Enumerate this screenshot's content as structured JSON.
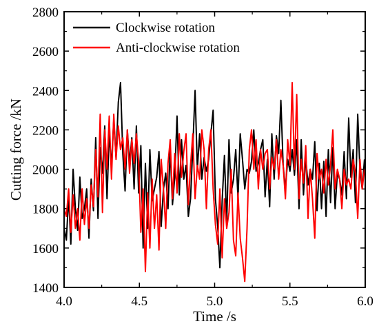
{
  "chart_data": {
    "type": "line",
    "title": "",
    "xlabel": "Time /s",
    "ylabel": "Cutting force /kN",
    "xlim": [
      4.0,
      6.0
    ],
    "ylim": [
      1400,
      2800
    ],
    "x_ticks": [
      "4.0",
      "4.5",
      "5.0",
      "5.5",
      "6.0"
    ],
    "y_ticks": [
      "1400",
      "1600",
      "1800",
      "2000",
      "2200",
      "2400",
      "2600",
      "2800"
    ],
    "grid": false,
    "legend_position": "top-left",
    "series": [
      {
        "name": "Clockwise rotation",
        "color": "#000000",
        "x": [
          4.0,
          4.015,
          4.03,
          4.045,
          4.06,
          4.075,
          4.09,
          4.105,
          4.12,
          4.135,
          4.15,
          4.165,
          4.18,
          4.195,
          4.21,
          4.225,
          4.24,
          4.255,
          4.27,
          4.285,
          4.3,
          4.315,
          4.33,
          4.345,
          4.36,
          4.375,
          4.39,
          4.405,
          4.42,
          4.435,
          4.45,
          4.465,
          4.48,
          4.495,
          4.51,
          4.525,
          4.54,
          4.555,
          4.57,
          4.585,
          4.6,
          4.615,
          4.63,
          4.645,
          4.66,
          4.675,
          4.69,
          4.705,
          4.72,
          4.735,
          4.75,
          4.765,
          4.78,
          4.795,
          4.81,
          4.825,
          4.84,
          4.855,
          4.87,
          4.885,
          4.9,
          4.915,
          4.93,
          4.945,
          4.96,
          4.975,
          4.99,
          5.005,
          5.02,
          5.035,
          5.05,
          5.065,
          5.08,
          5.095,
          5.11,
          5.125,
          5.14,
          5.155,
          5.17,
          5.185,
          5.2,
          5.215,
          5.23,
          5.245,
          5.26,
          5.275,
          5.29,
          5.305,
          5.32,
          5.335,
          5.35,
          5.365,
          5.38,
          5.395,
          5.41,
          5.425,
          5.44,
          5.455,
          5.47,
          5.485,
          5.5,
          5.515,
          5.53,
          5.545,
          5.56,
          5.575,
          5.59,
          5.605,
          5.62,
          5.635,
          5.65,
          5.665,
          5.68,
          5.695,
          5.71,
          5.725,
          5.74,
          5.755,
          5.77,
          5.785,
          5.8,
          5.815,
          5.83,
          5.845,
          5.86,
          5.875,
          5.89,
          5.905,
          5.92,
          5.935,
          5.95,
          5.965,
          5.98,
          5.995
        ],
        "y": [
          1700,
          1640,
          1860,
          1620,
          2000,
          1800,
          1690,
          1960,
          1750,
          1800,
          1900,
          1650,
          1950,
          1790,
          2160,
          1750,
          2110,
          1980,
          2220,
          1850,
          2180,
          2020,
          2250,
          2060,
          2340,
          2440,
          2080,
          1890,
          2200,
          2030,
          2160,
          1900,
          2220,
          1880,
          2120,
          1600,
          2030,
          1700,
          2100,
          1840,
          1900,
          1960,
          2090,
          1710,
          1900,
          1980,
          1800,
          2100,
          1820,
          1960,
          2270,
          1870,
          2150,
          1950,
          2020,
          1760,
          1850,
          2110,
          2400,
          2000,
          2180,
          1950,
          2060,
          1990,
          2050,
          2180,
          2300,
          1850,
          1710,
          1500,
          1840,
          2070,
          1730,
          2150,
          1880,
          1950,
          2100,
          1850,
          2180,
          2050,
          1900,
          2000,
          1980,
          2040,
          2200,
          1990,
          2030,
          2100,
          2150,
          1860,
          2050,
          1810,
          2180,
          1950,
          2170,
          2080,
          2350,
          2020,
          1900,
          2050,
          1990,
          2100,
          1970,
          2150,
          1800,
          2150,
          1870,
          2060,
          1920,
          2000,
          1950,
          2140,
          1790,
          2030,
          1800,
          2040,
          1760,
          2100,
          1830,
          2110,
          1800,
          1980,
          1950,
          1870,
          2090,
          1850,
          2260,
          1960,
          2100,
          1830,
          2280,
          1990,
          1900,
          2050
        ]
      },
      {
        "name": "Anti-clockwise rotation",
        "color": "#ff0000",
        "x": [
          4.0,
          4.015,
          4.03,
          4.045,
          4.06,
          4.075,
          4.09,
          4.105,
          4.12,
          4.135,
          4.15,
          4.165,
          4.18,
          4.195,
          4.21,
          4.225,
          4.24,
          4.255,
          4.27,
          4.285,
          4.3,
          4.315,
          4.33,
          4.345,
          4.36,
          4.375,
          4.39,
          4.405,
          4.42,
          4.435,
          4.45,
          4.465,
          4.48,
          4.495,
          4.51,
          4.525,
          4.54,
          4.555,
          4.57,
          4.585,
          4.6,
          4.615,
          4.63,
          4.645,
          4.66,
          4.675,
          4.69,
          4.705,
          4.72,
          4.735,
          4.75,
          4.765,
          4.78,
          4.795,
          4.81,
          4.825,
          4.84,
          4.855,
          4.87,
          4.885,
          4.9,
          4.915,
          4.93,
          4.945,
          4.96,
          4.975,
          4.99,
          5.005,
          5.02,
          5.035,
          5.05,
          5.065,
          5.08,
          5.095,
          5.11,
          5.125,
          5.14,
          5.155,
          5.17,
          5.185,
          5.2,
          5.215,
          5.23,
          5.245,
          5.26,
          5.275,
          5.29,
          5.305,
          5.32,
          5.335,
          5.35,
          5.365,
          5.38,
          5.395,
          5.41,
          5.425,
          5.44,
          5.455,
          5.47,
          5.485,
          5.5,
          5.515,
          5.53,
          5.545,
          5.56,
          5.575,
          5.59,
          5.605,
          5.62,
          5.635,
          5.65,
          5.665,
          5.68,
          5.695,
          5.71,
          5.725,
          5.74,
          5.755,
          5.77,
          5.785,
          5.8,
          5.815,
          5.83,
          5.845,
          5.86,
          5.875,
          5.89,
          5.905,
          5.92,
          5.935,
          5.95,
          5.965,
          5.98,
          5.995
        ],
        "y": [
          1800,
          1760,
          1900,
          1680,
          1870,
          1700,
          1800,
          1640,
          1900,
          1720,
          1850,
          1700,
          1920,
          1810,
          2100,
          1860,
          2280,
          1780,
          2200,
          2000,
          2270,
          1950,
          2280,
          2050,
          2220,
          2100,
          2160,
          2000,
          2200,
          1980,
          2150,
          2030,
          2180,
          2040,
          1680,
          1900,
          1480,
          1880,
          1600,
          1950,
          1700,
          1870,
          1590,
          2050,
          1900,
          1700,
          2030,
          2150,
          1850,
          2080,
          1880,
          2180,
          1960,
          2090,
          2180,
          1820,
          2020,
          2180,
          1850,
          2020,
          1950,
          2200,
          2100,
          1800,
          2100,
          2200,
          1900,
          1720,
          1620,
          1900,
          1550,
          1850,
          1700,
          1780,
          2000,
          1640,
          1560,
          1880,
          1650,
          1550,
          1430,
          1700,
          2100,
          2200,
          2000,
          2150,
          1900,
          2100,
          2000,
          2080,
          2100,
          1900,
          2060,
          2000,
          2150,
          1950,
          2100,
          2020,
          1850,
          2150,
          2020,
          2440,
          2000,
          2380,
          1850,
          2050,
          1930,
          2120,
          1750,
          2000,
          1850,
          1650,
          2080,
          1950,
          2000,
          1880,
          2050,
          1920,
          2020,
          2200,
          1900,
          2000,
          1950,
          1800,
          2000,
          1920,
          1950,
          1900,
          2050,
          1980,
          1750,
          2050,
          1900,
          2000
        ]
      }
    ]
  }
}
